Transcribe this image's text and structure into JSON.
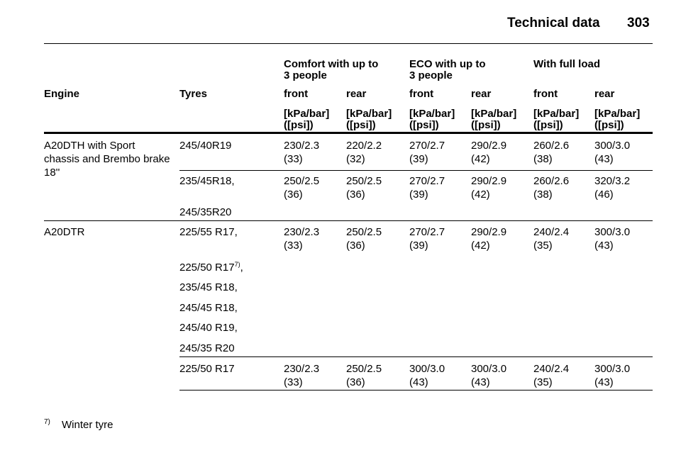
{
  "header": {
    "title": "Technical data",
    "page": "303"
  },
  "table": {
    "group_headers": [
      [
        "Comfort with up to",
        "3 people"
      ],
      [
        "ECO with up to",
        "3 people"
      ],
      [
        "With full load"
      ]
    ],
    "columns": [
      "Engine",
      "Tyres",
      "front",
      "rear",
      "front",
      "rear",
      "front",
      "rear"
    ],
    "units": [
      [
        "[kPa/bar]",
        "([psi])"
      ],
      [
        "[kPa/bar]",
        "([psi])"
      ],
      [
        "[kPa/bar]",
        "([psi])"
      ],
      [
        "[kPa/bar]",
        "([psi])"
      ],
      [
        "[kPa/bar]",
        "([psi])"
      ],
      [
        "[kPa/bar]",
        "([psi])"
      ]
    ],
    "groups": [
      {
        "engine": [
          "A20DTH with Sport",
          "chassis and Brembo brake",
          "18''"
        ],
        "rows": [
          {
            "tyres": [
              {
                "text": "245/40R19"
              }
            ],
            "values": [
              [
                "230/2.3",
                "(33)"
              ],
              [
                "220/2.2",
                "(32)"
              ],
              [
                "270/2.7",
                "(39)"
              ],
              [
                "290/2.9",
                "(42)"
              ],
              [
                "260/2.6",
                "(38)"
              ],
              [
                "300/3.0",
                "(43)"
              ]
            ]
          },
          {
            "tyres": [
              {
                "text": "235/45R18,"
              },
              {
                "text": "245/35R20"
              }
            ],
            "values": [
              [
                "250/2.5",
                "(36)"
              ],
              [
                "250/2.5",
                "(36)"
              ],
              [
                "270/2.7",
                "(39)"
              ],
              [
                "290/2.9",
                "(42)"
              ],
              [
                "260/2.6",
                "(38)"
              ],
              [
                "320/3.2",
                "(46)"
              ]
            ]
          }
        ]
      },
      {
        "engine": [
          "A20DTR"
        ],
        "rows": [
          {
            "tyres": [
              {
                "text": "225/55 R17,"
              },
              {
                "text": "225/50 R17",
                "footnote": "7)",
                "suffix": ","
              },
              {
                "text": "235/45 R18,"
              },
              {
                "text": "245/45 R18,"
              },
              {
                "text": "245/40 R19,"
              },
              {
                "text": "245/35 R20"
              }
            ],
            "values": [
              [
                "230/2.3",
                "(33)"
              ],
              [
                "250/2.5",
                "(36)"
              ],
              [
                "270/2.7",
                "(39)"
              ],
              [
                "290/2.9",
                "(42)"
              ],
              [
                "240/2.4",
                "(35)"
              ],
              [
                "300/3.0",
                "(43)"
              ]
            ]
          },
          {
            "tyres": [
              {
                "text": "225/50 R17"
              }
            ],
            "values": [
              [
                "230/2.3",
                "(33)"
              ],
              [
                "250/2.5",
                "(36)"
              ],
              [
                "300/3.0",
                "(43)"
              ],
              [
                "300/3.0",
                "(43)"
              ],
              [
                "240/2.4",
                "(35)"
              ],
              [
                "300/3.0",
                "(43)"
              ]
            ]
          }
        ]
      }
    ]
  },
  "footnote": {
    "mark": "7)",
    "text": "Winter tyre"
  }
}
